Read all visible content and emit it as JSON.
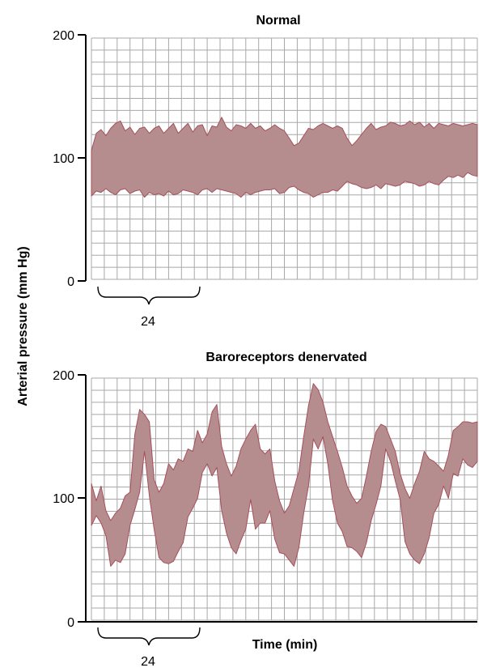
{
  "y_axis_label": "Arterial pressure (mm Hg)",
  "x_axis_label": "Time (min)",
  "chart_data": [
    {
      "type": "area",
      "title": "Normal",
      "ylim": [
        0,
        200
      ],
      "yticks": [
        0,
        100,
        200
      ],
      "grid": true,
      "scale_bar_label": "24",
      "series": [
        {
          "values": [
            [
              69,
              106
            ],
            [
              73,
              120
            ],
            [
              72,
              123
            ],
            [
              75,
              118
            ],
            [
              72,
              124
            ],
            [
              70,
              128
            ],
            [
              74,
              130
            ],
            [
              75,
              122
            ],
            [
              71,
              125
            ],
            [
              73,
              119
            ],
            [
              74,
              124
            ],
            [
              68,
              125
            ],
            [
              72,
              120
            ],
            [
              70,
              124
            ],
            [
              71,
              126
            ],
            [
              69,
              120
            ],
            [
              73,
              124
            ],
            [
              70,
              128
            ],
            [
              71,
              120
            ],
            [
              74,
              124
            ],
            [
              73,
              128
            ],
            [
              72,
              121
            ],
            [
              70,
              126
            ],
            [
              74,
              127
            ],
            [
              75,
              118
            ],
            [
              72,
              126
            ],
            [
              75,
              125
            ],
            [
              74,
              133
            ],
            [
              73,
              125
            ],
            [
              72,
              122
            ],
            [
              71,
              127
            ],
            [
              68,
              126
            ],
            [
              72,
              124
            ],
            [
              70,
              128
            ],
            [
              72,
              124
            ],
            [
              73,
              126
            ],
            [
              74,
              122
            ],
            [
              74,
              124
            ],
            [
              75,
              127
            ],
            [
              71,
              124
            ],
            [
              72,
              122
            ],
            [
              76,
              116
            ],
            [
              77,
              110
            ],
            [
              74,
              112
            ],
            [
              72,
              118
            ],
            [
              71,
              124
            ],
            [
              68,
              123
            ],
            [
              70,
              126
            ],
            [
              72,
              128
            ],
            [
              72,
              126
            ],
            [
              74,
              124
            ],
            [
              73,
              126
            ],
            [
              77,
              124
            ],
            [
              81,
              116
            ],
            [
              79,
              110
            ],
            [
              78,
              114
            ],
            [
              76,
              119
            ],
            [
              75,
              124
            ],
            [
              76,
              128
            ],
            [
              78,
              123
            ],
            [
              75,
              125
            ],
            [
              79,
              126
            ],
            [
              78,
              129
            ],
            [
              77,
              128
            ],
            [
              78,
              126
            ],
            [
              81,
              127
            ],
            [
              80,
              130
            ],
            [
              79,
              127
            ],
            [
              77,
              129
            ],
            [
              78,
              125
            ],
            [
              81,
              128
            ],
            [
              79,
              124
            ],
            [
              78,
              128
            ],
            [
              82,
              127
            ],
            [
              85,
              126
            ],
            [
              84,
              128
            ],
            [
              86,
              127
            ],
            [
              84,
              126
            ],
            [
              88,
              127
            ],
            [
              86,
              128
            ],
            [
              85,
              127
            ]
          ]
        }
      ]
    },
    {
      "type": "area",
      "title": "Baroreceptors denervated",
      "ylim": [
        0,
        200
      ],
      "yticks": [
        0,
        100,
        200
      ],
      "grid": true,
      "scale_bar_label": "24",
      "series": [
        {
          "values": [
            [
              78,
              112
            ],
            [
              86,
              98
            ],
            [
              80,
              110
            ],
            [
              70,
              90
            ],
            [
              45,
              82
            ],
            [
              50,
              88
            ],
            [
              48,
              92
            ],
            [
              55,
              102
            ],
            [
              78,
              105
            ],
            [
              91,
              152
            ],
            [
              105,
              172
            ],
            [
              138,
              168
            ],
            [
              102,
              162
            ],
            [
              75,
              115
            ],
            [
              52,
              105
            ],
            [
              48,
              112
            ],
            [
              47,
              128
            ],
            [
              49,
              123
            ],
            [
              57,
              132
            ],
            [
              64,
              130
            ],
            [
              85,
              140
            ],
            [
              92,
              138
            ],
            [
              100,
              155
            ],
            [
              121,
              145
            ],
            [
              128,
              152
            ],
            [
              118,
              170
            ],
            [
              125,
              176
            ],
            [
              90,
              142
            ],
            [
              72,
              128
            ],
            [
              60,
              118
            ],
            [
              55,
              126
            ],
            [
              66,
              140
            ],
            [
              75,
              148
            ],
            [
              99,
              155
            ],
            [
              75,
              160
            ],
            [
              80,
              140
            ],
            [
              80,
              136
            ],
            [
              90,
              140
            ],
            [
              67,
              114
            ],
            [
              56,
              98
            ],
            [
              55,
              88
            ],
            [
              50,
              94
            ],
            [
              45,
              108
            ],
            [
              60,
              122
            ],
            [
              88,
              150
            ],
            [
              110,
              175
            ],
            [
              148,
              193
            ],
            [
              140,
              188
            ],
            [
              150,
              178
            ],
            [
              128,
              162
            ],
            [
              98,
              150
            ],
            [
              80,
              138
            ],
            [
              73,
              125
            ],
            [
              61,
              110
            ],
            [
              60,
              102
            ],
            [
              57,
              96
            ],
            [
              52,
              100
            ],
            [
              64,
              118
            ],
            [
              82,
              138
            ],
            [
              95,
              154
            ],
            [
              110,
              160
            ],
            [
              140,
              158
            ],
            [
              130,
              148
            ],
            [
              114,
              138
            ],
            [
              99,
              120
            ],
            [
              65,
              108
            ],
            [
              55,
              100
            ],
            [
              50,
              112
            ],
            [
              47,
              122
            ],
            [
              55,
              138
            ],
            [
              68,
              132
            ],
            [
              88,
              130
            ],
            [
              95,
              126
            ],
            [
              110,
              122
            ],
            [
              100,
              135
            ],
            [
              120,
              155
            ],
            [
              118,
              158
            ],
            [
              132,
              162
            ],
            [
              127,
              162
            ],
            [
              125,
              161
            ],
            [
              130,
              162
            ]
          ]
        }
      ]
    }
  ]
}
